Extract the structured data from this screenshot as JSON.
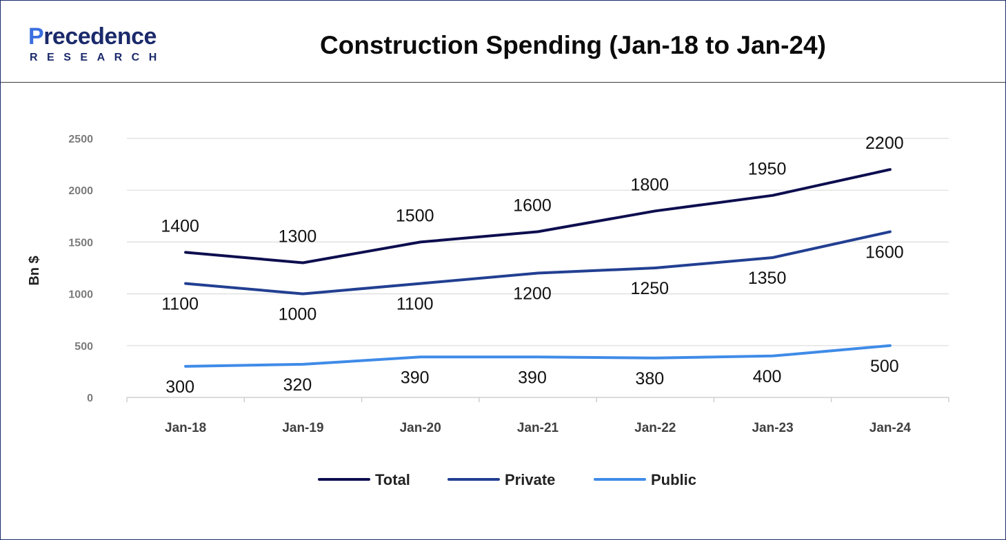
{
  "header": {
    "logo_text_main": "Precedence",
    "logo_text_sub": "RESEARCH"
  },
  "colors": {
    "total": "#0d0e4f",
    "private": "#223f91",
    "public": "#3f8be8",
    "grid": "#dcdcdc",
    "border": "#1b2a6b"
  },
  "chart_data": {
    "type": "line",
    "title": "Construction Spending (Jan-18 to Jan-24)",
    "xlabel": "",
    "ylabel": "Bn $",
    "categories": [
      "Jan-18",
      "Jan-19",
      "Jan-20",
      "Jan-21",
      "Jan-22",
      "Jan-23",
      "Jan-24"
    ],
    "ylim": [
      0,
      2500
    ],
    "yticks": [
      0,
      500,
      1000,
      1500,
      2000,
      2500
    ],
    "grid": true,
    "legend_position": "bottom",
    "series": [
      {
        "name": "Total",
        "color": "#0d0e4f",
        "values": [
          1400,
          1300,
          1500,
          1600,
          1800,
          1950,
          2200
        ],
        "label_position": "above"
      },
      {
        "name": "Private",
        "color": "#223f91",
        "values": [
          1100,
          1000,
          1100,
          1200,
          1250,
          1350,
          1600
        ],
        "label_position": "below"
      },
      {
        "name": "Public",
        "color": "#3f8be8",
        "values": [
          300,
          320,
          390,
          390,
          380,
          400,
          500
        ],
        "label_position": "below"
      }
    ]
  }
}
